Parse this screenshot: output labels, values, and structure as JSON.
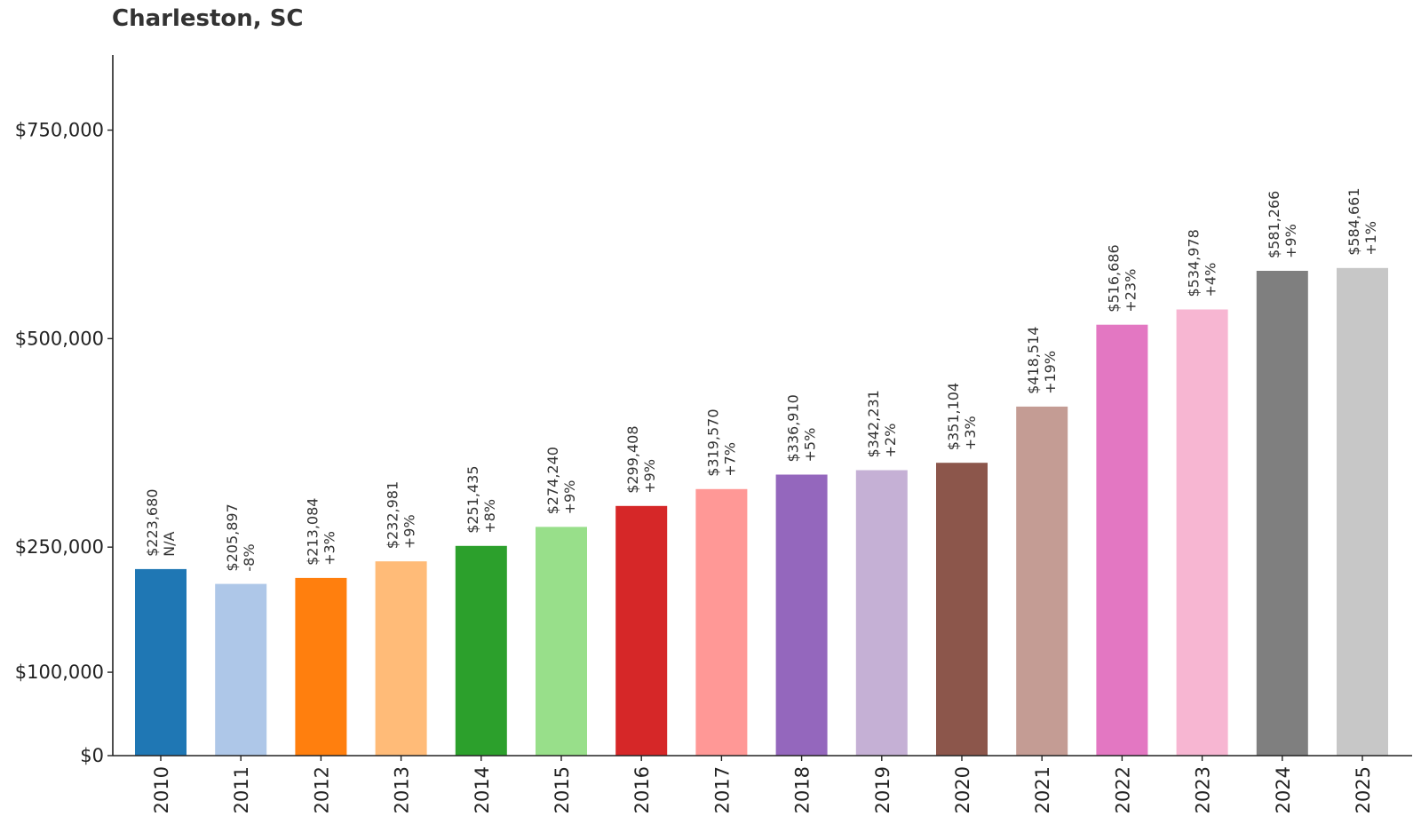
{
  "chart_data": {
    "type": "bar",
    "title": "Charleston, SC",
    "xlabel": "",
    "ylabel": "",
    "categories": [
      "2010",
      "2011",
      "2012",
      "2013",
      "2014",
      "2015",
      "2016",
      "2017",
      "2018",
      "2019",
      "2020",
      "2021",
      "2022",
      "2023",
      "2024",
      "2025"
    ],
    "values": [
      223680,
      205897,
      213084,
      232981,
      251435,
      274240,
      299408,
      319570,
      336910,
      342231,
      351104,
      418514,
      516686,
      534978,
      581266,
      584661
    ],
    "value_labels": [
      "$223,680",
      "$205,897",
      "$213,084",
      "$232,981",
      "$251,435",
      "$274,240",
      "$299,408",
      "$319,570",
      "$336,910",
      "$342,231",
      "$351,104",
      "$418,514",
      "$516,686",
      "$534,978",
      "$581,266",
      "$584,661"
    ],
    "change_labels": [
      "N/A",
      "-8%",
      "+3%",
      "+9%",
      "+8%",
      "+9%",
      "+9%",
      "+7%",
      "+5%",
      "+2%",
      "+3%",
      "+19%",
      "+23%",
      "+4%",
      "+9%",
      "+1%"
    ],
    "colors": [
      "#1f77b4",
      "#aec7e8",
      "#ff7f0e",
      "#ffbb78",
      "#2ca02c",
      "#98df8a",
      "#d62728",
      "#ff9896",
      "#9467bd",
      "#c5b0d5",
      "#8c564b",
      "#c49c94",
      "#e377c2",
      "#f7b6d2",
      "#7f7f7f",
      "#c7c7c7"
    ],
    "yticks": [
      0,
      100000,
      250000,
      500000,
      750000
    ],
    "ytick_labels": [
      "$0",
      "$100,000",
      "$250,000",
      "$500,000",
      "$750,000"
    ],
    "ylim": [
      0,
      840000
    ],
    "grid": false,
    "legend": "none"
  }
}
